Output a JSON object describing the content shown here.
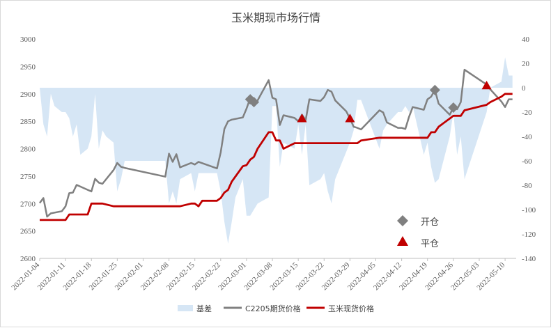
{
  "chart_data": {
    "type": "line",
    "title": "玉米期现市场行情",
    "colors": {
      "basis": "#d6e6f5",
      "futures": "#808080",
      "spot": "#c00000",
      "open_marker": "#808080",
      "close_marker": "#c00000"
    },
    "x_ticks": [
      "2022-01-04",
      "2022-01-11",
      "2022-01-18",
      "2022-01-25",
      "2022-02-01",
      "2022-02-08",
      "2022-02-15",
      "2022-02-22",
      "2022-03-01",
      "2022-03-08",
      "2022-03-15",
      "2022-03-22",
      "2022-03-29",
      "2022-04-05",
      "2022-04-12",
      "2022-04-19",
      "2022-04-26",
      "2022-05-03",
      "2022-05-10"
    ],
    "y_left": {
      "min": 2600,
      "max": 3000,
      "ticks": [
        "2600",
        "2650",
        "2700",
        "2750",
        "2800",
        "2850",
        "2900",
        "2950",
        "3000"
      ]
    },
    "y_right": {
      "min": -140,
      "max": 40,
      "ticks": [
        "-140",
        "-120",
        "-100",
        "-80",
        "-60",
        "-40",
        "-20",
        "0",
        "20",
        "40"
      ]
    },
    "legend_position": "bottom",
    "series": [
      {
        "name": "基差",
        "kind": "area",
        "axis": "right",
        "points": [
          [
            "2022-01-04",
            0
          ],
          [
            "2022-01-05",
            -30
          ],
          [
            "2022-01-06",
            -40
          ],
          [
            "2022-01-07",
            -5
          ],
          [
            "2022-01-08",
            -15
          ],
          [
            "2022-01-10",
            -20
          ],
          [
            "2022-01-11",
            -20
          ],
          [
            "2022-01-12",
            -25
          ],
          [
            "2022-01-13",
            -40
          ],
          [
            "2022-01-14",
            -30
          ],
          [
            "2022-01-15",
            -55
          ],
          [
            "2022-01-17",
            -50
          ],
          [
            "2022-01-18",
            -40
          ],
          [
            "2022-01-19",
            -5
          ],
          [
            "2022-01-20",
            -50
          ],
          [
            "2022-01-21",
            -35
          ],
          [
            "2022-01-22",
            -40
          ],
          [
            "2022-01-24",
            -45
          ],
          [
            "2022-01-25",
            -85
          ],
          [
            "2022-01-26",
            -75
          ],
          [
            "2022-01-27",
            -60
          ],
          [
            "2022-02-07",
            -60
          ],
          [
            "2022-02-08",
            -95
          ],
          [
            "2022-02-09",
            -85
          ],
          [
            "2022-02-10",
            -95
          ],
          [
            "2022-02-11",
            -75
          ],
          [
            "2022-02-14",
            -70
          ],
          [
            "2022-02-15",
            -85
          ],
          [
            "2022-02-16",
            -70
          ],
          [
            "2022-02-21",
            -70
          ],
          [
            "2022-02-22",
            -85
          ],
          [
            "2022-02-23",
            -110
          ],
          [
            "2022-02-24",
            -128
          ],
          [
            "2022-02-25",
            -110
          ],
          [
            "2022-02-26",
            -90
          ],
          [
            "2022-02-28",
            -75
          ],
          [
            "2022-03-01",
            -105
          ],
          [
            "2022-03-02",
            -105
          ],
          [
            "2022-03-03",
            -100
          ],
          [
            "2022-03-04",
            -95
          ],
          [
            "2022-03-07",
            -90
          ],
          [
            "2022-03-08",
            -15
          ],
          [
            "2022-03-09",
            -15
          ],
          [
            "2022-03-10",
            -65
          ],
          [
            "2022-03-11",
            -45
          ],
          [
            "2022-03-14",
            -50
          ],
          [
            "2022-03-15",
            -30
          ],
          [
            "2022-03-16",
            -55
          ],
          [
            "2022-03-17",
            -30
          ],
          [
            "2022-03-18",
            -80
          ],
          [
            "2022-03-21",
            -75
          ],
          [
            "2022-03-22",
            -70
          ],
          [
            "2022-03-23",
            -85
          ],
          [
            "2022-03-24",
            -95
          ],
          [
            "2022-03-25",
            -75
          ],
          [
            "2022-03-29",
            -45
          ],
          [
            "2022-03-30",
            -35
          ],
          [
            "2022-03-31",
            -10
          ],
          [
            "2022-04-01",
            -10
          ],
          [
            "2022-04-06",
            -50
          ],
          [
            "2022-04-07",
            -35
          ],
          [
            "2022-04-08",
            -30
          ],
          [
            "2022-04-11",
            -20
          ],
          [
            "2022-04-12",
            -20
          ],
          [
            "2022-04-13",
            -15
          ],
          [
            "2022-04-14",
            -20
          ],
          [
            "2022-04-15",
            -15
          ],
          [
            "2022-04-18",
            -55
          ],
          [
            "2022-04-19",
            -45
          ],
          [
            "2022-04-20",
            -65
          ],
          [
            "2022-04-21",
            -78
          ],
          [
            "2022-04-22",
            -75
          ],
          [
            "2022-04-25",
            -40
          ],
          [
            "2022-04-26",
            -20
          ],
          [
            "2022-04-27",
            -55
          ],
          [
            "2022-04-28",
            -40
          ],
          [
            "2022-04-29",
            -75
          ],
          [
            "2022-05-05",
            -20
          ],
          [
            "2022-05-06",
            0
          ],
          [
            "2022-05-09",
            5
          ],
          [
            "2022-05-10",
            25
          ],
          [
            "2022-05-11",
            10
          ],
          [
            "2022-05-12",
            10
          ]
        ]
      },
      {
        "name": "C2205期货价格",
        "kind": "line",
        "axis": "left",
        "points": [
          [
            "2022-01-04",
            2701
          ],
          [
            "2022-01-05",
            2710
          ],
          [
            "2022-01-06",
            2676
          ],
          [
            "2022-01-07",
            2682
          ],
          [
            "2022-01-10",
            2686
          ],
          [
            "2022-01-11",
            2695
          ],
          [
            "2022-01-12",
            2719
          ],
          [
            "2022-01-13",
            2720
          ],
          [
            "2022-01-14",
            2734
          ],
          [
            "2022-01-17",
            2725
          ],
          [
            "2022-01-18",
            2722
          ],
          [
            "2022-01-19",
            2745
          ],
          [
            "2022-01-20",
            2738
          ],
          [
            "2022-01-21",
            2736
          ],
          [
            "2022-01-24",
            2761
          ],
          [
            "2022-01-25",
            2774
          ],
          [
            "2022-01-26",
            2767
          ],
          [
            "2022-01-27",
            2765
          ],
          [
            "2022-02-07",
            2749
          ],
          [
            "2022-02-08",
            2791
          ],
          [
            "2022-02-09",
            2776
          ],
          [
            "2022-02-10",
            2790
          ],
          [
            "2022-02-11",
            2766
          ],
          [
            "2022-02-14",
            2774
          ],
          [
            "2022-02-15",
            2771
          ],
          [
            "2022-02-16",
            2776
          ],
          [
            "2022-02-21",
            2764
          ],
          [
            "2022-02-22",
            2793
          ],
          [
            "2022-02-23",
            2836
          ],
          [
            "2022-02-24",
            2850
          ],
          [
            "2022-02-25",
            2853
          ],
          [
            "2022-02-28",
            2857
          ],
          [
            "2022-03-01",
            2873
          ],
          [
            "2022-03-02",
            2892
          ],
          [
            "2022-03-03",
            2885
          ],
          [
            "2022-03-04",
            2888
          ],
          [
            "2022-03-07",
            2925
          ],
          [
            "2022-03-08",
            2893
          ],
          [
            "2022-03-09",
            2890
          ],
          [
            "2022-03-10",
            2843
          ],
          [
            "2022-03-11",
            2861
          ],
          [
            "2022-03-14",
            2856
          ],
          [
            "2022-03-15",
            2850
          ],
          [
            "2022-03-16",
            2862
          ],
          [
            "2022-03-17",
            2852
          ],
          [
            "2022-03-18",
            2890
          ],
          [
            "2022-03-21",
            2887
          ],
          [
            "2022-03-22",
            2894
          ],
          [
            "2022-03-23",
            2907
          ],
          [
            "2022-03-24",
            2904
          ],
          [
            "2022-03-25",
            2888
          ],
          [
            "2022-03-28",
            2868
          ],
          [
            "2022-03-29",
            2855
          ],
          [
            "2022-03-30",
            2840
          ],
          [
            "2022-03-31",
            2838
          ],
          [
            "2022-04-01",
            2835
          ],
          [
            "2022-04-06",
            2870
          ],
          [
            "2022-04-07",
            2866
          ],
          [
            "2022-04-08",
            2848
          ],
          [
            "2022-04-11",
            2838
          ],
          [
            "2022-04-12",
            2838
          ],
          [
            "2022-04-13",
            2836
          ],
          [
            "2022-04-14",
            2858
          ],
          [
            "2022-04-15",
            2876
          ],
          [
            "2022-04-18",
            2871
          ],
          [
            "2022-04-19",
            2890
          ],
          [
            "2022-04-20",
            2895
          ],
          [
            "2022-04-21",
            2907
          ],
          [
            "2022-04-22",
            2882
          ],
          [
            "2022-04-25",
            2862
          ],
          [
            "2022-04-26",
            2875
          ],
          [
            "2022-04-27",
            2872
          ],
          [
            "2022-04-28",
            2885
          ],
          [
            "2022-04-29",
            2944
          ],
          [
            "2022-05-05",
            2917
          ],
          [
            "2022-05-06",
            2908
          ],
          [
            "2022-05-09",
            2886
          ],
          [
            "2022-05-10",
            2876
          ],
          [
            "2022-05-11",
            2890
          ],
          [
            "2022-05-12",
            2890
          ]
        ]
      },
      {
        "name": "玉米现货价格",
        "kind": "line",
        "axis": "left",
        "points": [
          [
            "2022-01-04",
            2670
          ],
          [
            "2022-01-11",
            2670
          ],
          [
            "2022-01-12",
            2680
          ],
          [
            "2022-01-17",
            2680
          ],
          [
            "2022-01-18",
            2700
          ],
          [
            "2022-01-21",
            2700
          ],
          [
            "2022-01-24",
            2695
          ],
          [
            "2022-02-11",
            2695
          ],
          [
            "2022-02-14",
            2700
          ],
          [
            "2022-02-15",
            2700
          ],
          [
            "2022-02-16",
            2695
          ],
          [
            "2022-02-17",
            2705
          ],
          [
            "2022-02-21",
            2705
          ],
          [
            "2022-02-22",
            2710
          ],
          [
            "2022-02-23",
            2720
          ],
          [
            "2022-02-24",
            2725
          ],
          [
            "2022-02-25",
            2740
          ],
          [
            "2022-02-28",
            2768
          ],
          [
            "2022-03-01",
            2770
          ],
          [
            "2022-03-02",
            2780
          ],
          [
            "2022-03-03",
            2785
          ],
          [
            "2022-03-04",
            2800
          ],
          [
            "2022-03-07",
            2830
          ],
          [
            "2022-03-08",
            2830
          ],
          [
            "2022-03-09",
            2815
          ],
          [
            "2022-03-10",
            2815
          ],
          [
            "2022-03-11",
            2800
          ],
          [
            "2022-03-14",
            2810
          ],
          [
            "2022-03-15",
            2810
          ],
          [
            "2022-03-16",
            2810
          ],
          [
            "2022-03-31",
            2810
          ],
          [
            "2022-04-01",
            2815
          ],
          [
            "2022-04-06",
            2820
          ],
          [
            "2022-04-19",
            2820
          ],
          [
            "2022-04-20",
            2830
          ],
          [
            "2022-04-21",
            2830
          ],
          [
            "2022-04-22",
            2840
          ],
          [
            "2022-04-25",
            2855
          ],
          [
            "2022-04-26",
            2860
          ],
          [
            "2022-04-28",
            2860
          ],
          [
            "2022-04-29",
            2870
          ],
          [
            "2022-05-05",
            2880
          ],
          [
            "2022-05-06",
            2885
          ],
          [
            "2022-05-09",
            2895
          ],
          [
            "2022-05-10",
            2900
          ],
          [
            "2022-05-12",
            2900
          ]
        ]
      }
    ],
    "markers": [
      {
        "label": "开仓",
        "shape": "diamond",
        "points": [
          [
            "2022-03-02",
            2890
          ],
          [
            "2022-03-03",
            2885
          ],
          [
            "2022-04-21",
            2907
          ],
          [
            "2022-04-26",
            2875
          ]
        ]
      },
      {
        "label": "平仓",
        "shape": "triangle",
        "points": [
          [
            "2022-03-16",
            2855
          ],
          [
            "2022-03-29",
            2855
          ],
          [
            "2022-05-05",
            2915
          ]
        ]
      }
    ]
  }
}
